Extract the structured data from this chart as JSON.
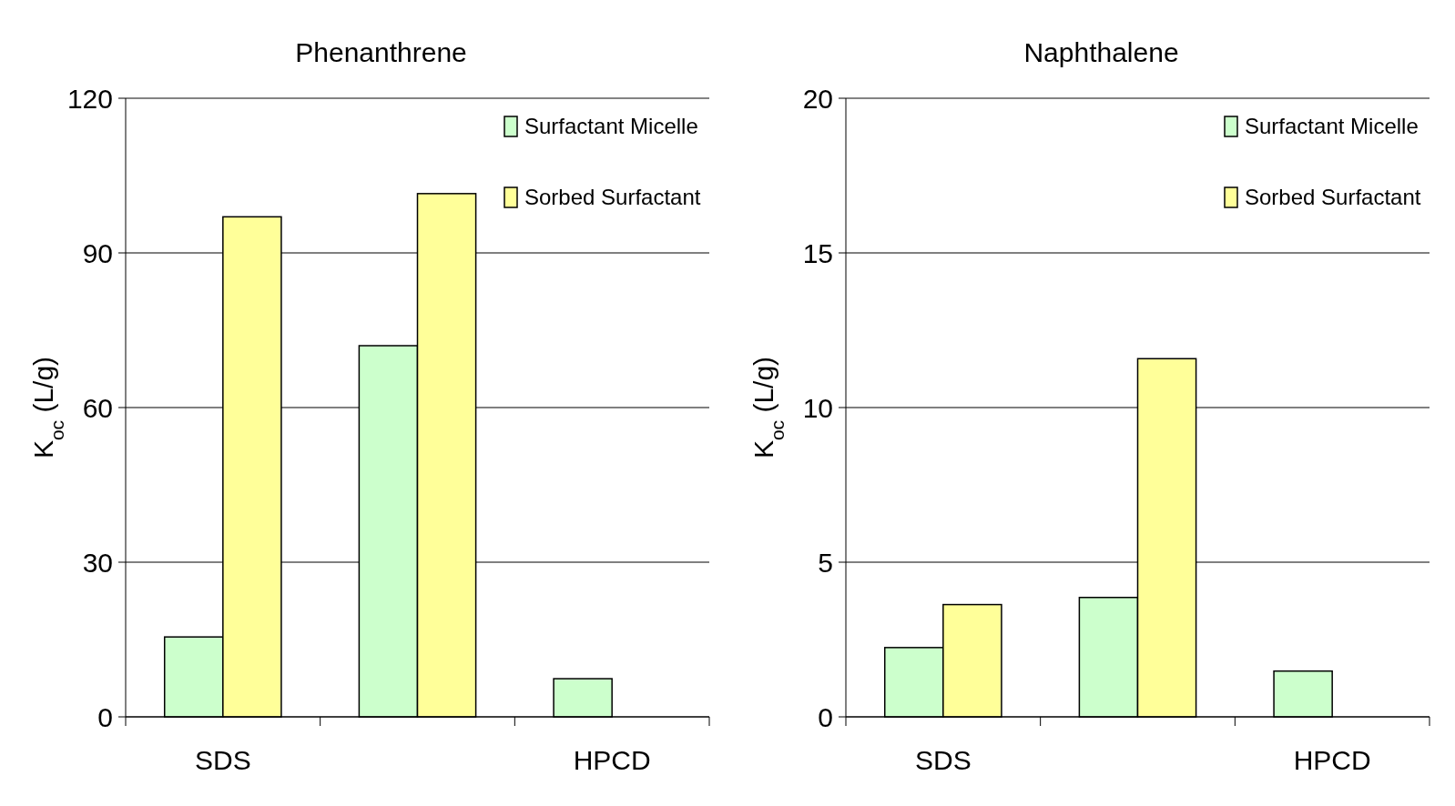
{
  "chart_data": [
    {
      "type": "bar",
      "title": "Phenanthrene",
      "ylabel": "K$_{oc}$ (L/g)",
      "categories": [
        "SDS",
        null,
        "HPCD"
      ],
      "series": [
        {
          "name": "Surfactant Micelle",
          "color": "#ccffcc",
          "values": [
            15.5,
            72,
            7.4
          ]
        },
        {
          "name": "Sorbed Surfactant",
          "color": "#ffff99",
          "values": [
            97,
            101.5,
            null
          ]
        }
      ],
      "ylim": [
        0,
        120
      ],
      "yticks": [
        0,
        30,
        60,
        90,
        120
      ],
      "grid": "y",
      "legend": "top right"
    },
    {
      "type": "bar",
      "title": "Naphthalene",
      "ylabel": "K$_{oc}$ (L/g)",
      "categories": [
        "SDS",
        null,
        "HPCD"
      ],
      "series": [
        {
          "name": "Surfactant Micelle",
          "color": "#ccffcc",
          "values": [
            2.24,
            3.86,
            1.48
          ]
        },
        {
          "name": "Sorbed Surfactant",
          "color": "#ffff99",
          "values": [
            3.63,
            11.58,
            null
          ]
        }
      ],
      "ylim": [
        0,
        20
      ],
      "yticks": [
        0,
        5,
        10,
        15,
        20
      ],
      "grid": "y",
      "legend": "top right"
    }
  ]
}
